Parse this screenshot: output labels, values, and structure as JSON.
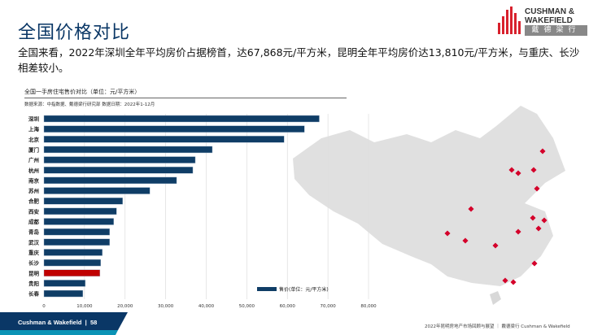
{
  "header": {
    "title": "全国价格对比",
    "subtitle": "全国来看，2022年深圳全年平均房价占据榜首，达67,868元/平方米，昆明全年平均房价达13,810元/平方米，与重庆、长沙相差较小。"
  },
  "logo": {
    "line1": "CUSHMAN &",
    "line2": "WAKEFIELD",
    "cn": "戴德梁行"
  },
  "chart_data": {
    "type": "bar",
    "title": "全国一手房住宅售价对比（单位：元/平方米）",
    "source": "数据来源：中指数据、戴德梁行研究部 数据日期：2022年1-12月",
    "categories": [
      "深圳",
      "上海",
      "北京",
      "厦门",
      "广州",
      "杭州",
      "南京",
      "苏州",
      "合肥",
      "西安",
      "成都",
      "青岛",
      "武汉",
      "重庆",
      "长沙",
      "昆明",
      "贵阳",
      "长春"
    ],
    "series": [
      {
        "name": "售价(单位：元/平方米)",
        "values": [
          67868,
          64200,
          59200,
          41500,
          37300,
          36700,
          32700,
          26100,
          19400,
          17900,
          17200,
          16200,
          16200,
          14400,
          14000,
          13810,
          10200,
          9600
        ]
      }
    ],
    "highlight": "昆明",
    "xlim": [
      0,
      80000
    ],
    "xticks": [
      "0",
      "10,000",
      "20,000",
      "30,000",
      "40,000",
      "50,000",
      "60,000",
      "70,000",
      "80,000"
    ],
    "legend": "售价(单位：元/平方米)",
    "colors": {
      "bar": "#0f3d66",
      "highlight": "#c00000",
      "map_marker": "#d4002a"
    }
  },
  "footer": {
    "brand": "Cushman & Wakefield",
    "page": "58",
    "note": "2022年昆明房地产市场回顾与展望 ｜ 戴德梁行 Cushman & Wakefield"
  }
}
